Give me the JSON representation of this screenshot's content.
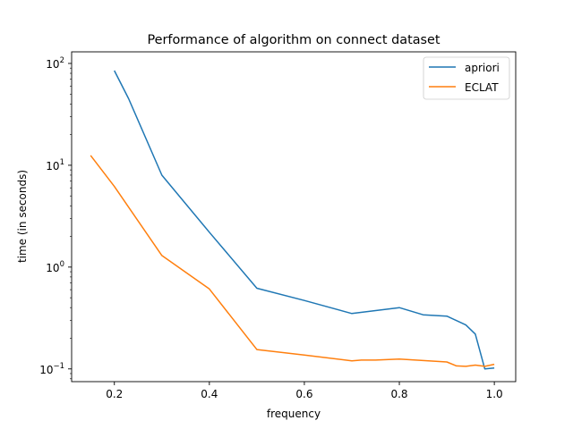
{
  "chart_data": {
    "type": "line",
    "title": "Performance of algorithm on connect dataset",
    "xlabel": "frequency",
    "ylabel": "time (in seconds)",
    "xlim": [
      0.11,
      1.045
    ],
    "ylim": [
      0.075,
      130
    ],
    "yscale": "log",
    "grid": false,
    "legend_position": "top-right",
    "x_ticks": [
      0.2,
      0.4,
      0.6,
      0.8,
      1.0
    ],
    "x_tick_labels": [
      "0.2",
      "0.4",
      "0.6",
      "0.8",
      "1.0"
    ],
    "y_ticks": [
      0.1,
      1,
      10,
      100
    ],
    "y_tick_base": "10",
    "y_tick_exponents": [
      "−1",
      "0",
      "1",
      "2"
    ],
    "series": [
      {
        "name": "apriori",
        "color": "#1f77b4",
        "x": [
          0.2,
          0.23,
          0.3,
          0.4,
          0.5,
          0.6,
          0.7,
          0.8,
          0.85,
          0.9,
          0.94,
          0.96,
          0.98,
          1.0
        ],
        "y": [
          85,
          45,
          8.0,
          2.2,
          0.62,
          0.47,
          0.35,
          0.4,
          0.34,
          0.33,
          0.27,
          0.22,
          0.1,
          0.102
        ]
      },
      {
        "name": "ECLAT",
        "color": "#ff7f0e",
        "x": [
          0.15,
          0.2,
          0.3,
          0.4,
          0.5,
          0.6,
          0.7,
          0.72,
          0.75,
          0.8,
          0.9,
          0.92,
          0.94,
          0.96,
          0.98,
          1.0
        ],
        "y": [
          12.5,
          6.2,
          1.3,
          0.61,
          0.155,
          0.137,
          0.12,
          0.122,
          0.122,
          0.125,
          0.117,
          0.107,
          0.106,
          0.109,
          0.106,
          0.111
        ]
      }
    ]
  }
}
